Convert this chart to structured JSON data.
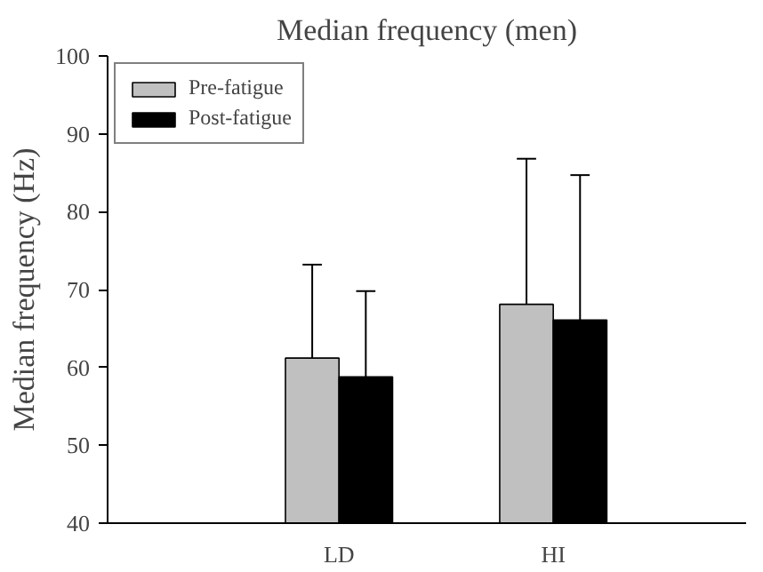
{
  "chart_data": {
    "type": "bar",
    "title": "Median frequency (men)",
    "ylabel": "Median frequency (Hz)",
    "categories": [
      "LD",
      "HI"
    ],
    "series": [
      {
        "name": "Pre-fatigue",
        "color": "#c0c0c0",
        "values": [
          61.2,
          68.1
        ],
        "errors": [
          [
            61.2,
            73.2
          ],
          [
            68.1,
            86.8
          ]
        ]
      },
      {
        "name": "Post-fatigue",
        "color": "#000000",
        "values": [
          58.8,
          66.1
        ],
        "errors": [
          [
            58.8,
            69.8
          ],
          [
            66.1,
            84.7
          ]
        ]
      }
    ],
    "ylim": [
      40,
      100
    ],
    "yticks": [
      40,
      50,
      60,
      70,
      80,
      90,
      100
    ],
    "grid": false,
    "legend": "top left"
  }
}
